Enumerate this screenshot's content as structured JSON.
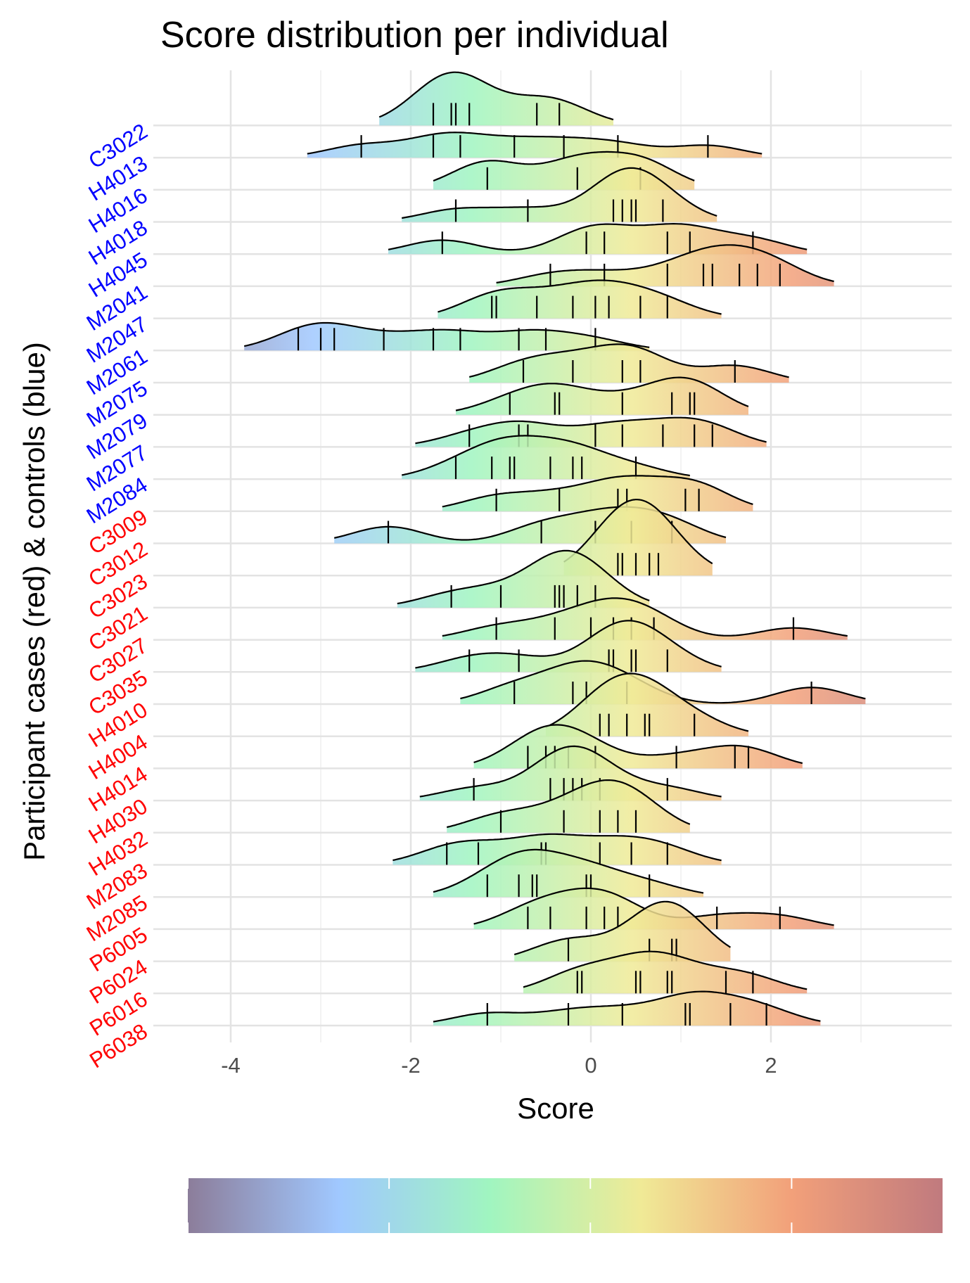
{
  "chart_data": {
    "type": "ridgeline",
    "title": "Score distribution per individual",
    "xlabel": "Score",
    "ylabel": "Participant cases (red) & controls (blue)",
    "xlim": [
      -4.6,
      3.9
    ],
    "x_ticks": [
      "-4",
      "-2",
      "0",
      "2"
    ],
    "x_tick_values": [
      -4,
      -2,
      0,
      2
    ],
    "grid": true,
    "legend": "bottom colorbar (no labels)",
    "colorbar_range": [
      -4,
      3.5
    ],
    "group_colors": {
      "control": "#0000ff",
      "case": "#ff0000"
    },
    "gradient_colors": [
      "#8c7d9a",
      "#a0c8ff",
      "#a0f5c0",
      "#f0ea96",
      "#f2a07a",
      "#c07a7e"
    ],
    "series": [
      {
        "name": "C3022",
        "group": "control",
        "scores": [
          -1.75,
          -1.55,
          -1.5,
          -1.35,
          -0.6,
          -0.35
        ]
      },
      {
        "name": "H4013",
        "group": "control",
        "scores": [
          -2.55,
          -1.75,
          -1.45,
          -0.85,
          -0.3,
          0.3,
          1.3
        ]
      },
      {
        "name": "H4016",
        "group": "control",
        "scores": [
          -1.15,
          -0.15,
          0.55
        ]
      },
      {
        "name": "H4018",
        "group": "control",
        "scores": [
          -1.5,
          -0.7,
          0.25,
          0.35,
          0.45,
          0.5,
          0.8
        ]
      },
      {
        "name": "H4045",
        "group": "control",
        "scores": [
          -1.65,
          -0.05,
          0.15,
          0.85,
          1.1,
          1.8
        ]
      },
      {
        "name": "M2041",
        "group": "control",
        "scores": [
          -0.45,
          0.15,
          0.85,
          1.25,
          1.35,
          1.65,
          1.85,
          2.1
        ]
      },
      {
        "name": "M2047",
        "group": "control",
        "scores": [
          -1.1,
          -1.05,
          -0.6,
          -0.2,
          0.05,
          0.2,
          0.55,
          0.85
        ]
      },
      {
        "name": "M2061",
        "group": "control",
        "scores": [
          -3.25,
          -3.0,
          -2.85,
          -2.3,
          -1.75,
          -1.45,
          -0.8,
          -0.5,
          0.05
        ]
      },
      {
        "name": "M2075",
        "group": "control",
        "scores": [
          -0.75,
          -0.2,
          0.35,
          0.55,
          1.6
        ]
      },
      {
        "name": "M2079",
        "group": "control",
        "scores": [
          -0.9,
          -0.4,
          -0.35,
          0.35,
          0.9,
          1.1,
          1.15
        ]
      },
      {
        "name": "M2077",
        "group": "control",
        "scores": [
          -1.35,
          -0.8,
          -0.7,
          0.05,
          0.35,
          0.8,
          1.15,
          1.35
        ]
      },
      {
        "name": "M2084",
        "group": "control",
        "scores": [
          -1.5,
          -1.1,
          -0.9,
          -0.85,
          -0.45,
          -0.2,
          -0.1,
          0.5
        ]
      },
      {
        "name": "C3009",
        "group": "case",
        "scores": [
          -1.05,
          -0.35,
          0.3,
          0.4,
          1.05,
          1.2
        ]
      },
      {
        "name": "C3012",
        "group": "case",
        "scores": [
          -2.25,
          -0.55,
          0.05,
          0.45,
          0.9
        ]
      },
      {
        "name": "C3023",
        "group": "case",
        "scores": [
          0.3,
          0.35,
          0.5,
          0.65,
          0.75
        ]
      },
      {
        "name": "C3021",
        "group": "case",
        "scores": [
          -1.55,
          -1.0,
          -0.4,
          -0.35,
          -0.3,
          -0.15,
          0.05
        ]
      },
      {
        "name": "C3027",
        "group": "case",
        "scores": [
          -1.05,
          -0.4,
          0.0,
          0.25,
          0.45,
          0.7,
          2.25
        ]
      },
      {
        "name": "C3035",
        "group": "case",
        "scores": [
          -1.35,
          -0.8,
          0.2,
          0.25,
          0.45,
          0.5,
          0.85
        ]
      },
      {
        "name": "H4010",
        "group": "case",
        "scores": [
          -0.85,
          -0.2,
          -0.05,
          0.4,
          2.45
        ]
      },
      {
        "name": "H4004",
        "group": "case",
        "scores": [
          0.1,
          0.2,
          0.4,
          0.6,
          0.65,
          1.15
        ]
      },
      {
        "name": "H4014",
        "group": "case",
        "scores": [
          -0.7,
          -0.5,
          -0.4,
          -0.25,
          0.05,
          0.95,
          1.6,
          1.75
        ]
      },
      {
        "name": "H4030",
        "group": "case",
        "scores": [
          -1.3,
          -0.45,
          -0.3,
          -0.2,
          -0.1,
          0.1,
          0.85
        ]
      },
      {
        "name": "H4032",
        "group": "case",
        "scores": [
          -1.0,
          -0.3,
          0.1,
          0.3,
          0.5
        ]
      },
      {
        "name": "M2083",
        "group": "case",
        "scores": [
          -1.6,
          -1.25,
          -0.55,
          -0.5,
          0.1,
          0.45,
          0.85
        ]
      },
      {
        "name": "M2085",
        "group": "case",
        "scores": [
          -1.15,
          -0.8,
          -0.65,
          -0.6,
          -0.05,
          0.0,
          0.65
        ]
      },
      {
        "name": "P6005",
        "group": "case",
        "scores": [
          -0.7,
          -0.45,
          -0.05,
          0.15,
          0.3,
          1.4,
          2.1
        ]
      },
      {
        "name": "P6024",
        "group": "case",
        "scores": [
          -0.25,
          0.65,
          0.9,
          0.95
        ]
      },
      {
        "name": "P6016",
        "group": "case",
        "scores": [
          -0.15,
          -0.1,
          0.5,
          0.55,
          0.85,
          0.9,
          1.5,
          1.8
        ]
      },
      {
        "name": "P6038",
        "group": "case",
        "scores": [
          -1.15,
          -0.25,
          0.35,
          1.05,
          1.1,
          1.55,
          1.95
        ]
      }
    ]
  }
}
